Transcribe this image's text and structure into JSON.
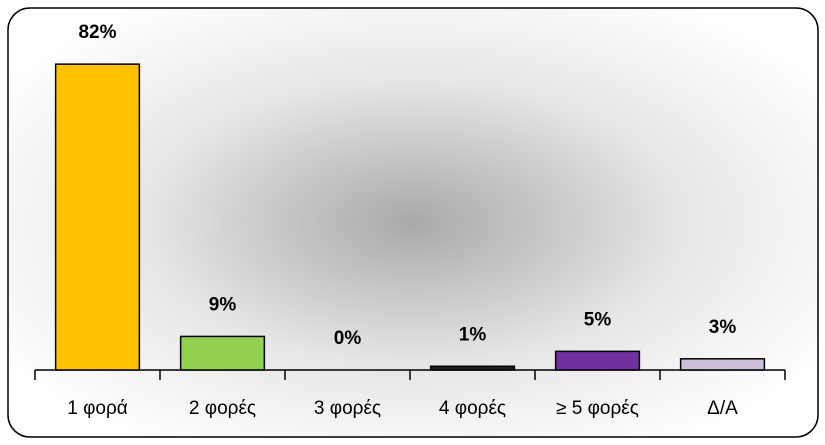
{
  "chart_data": {
    "type": "bar",
    "categories": [
      "1 φορά",
      "2 φορές",
      "3 φορές",
      "4 φορές",
      "≥ 5 φορές",
      "Δ/Α"
    ],
    "values": [
      82,
      9,
      0,
      1,
      5,
      3
    ],
    "value_labels": [
      "82%",
      "9%",
      "0%",
      "1%",
      "5%",
      "3%"
    ],
    "colors": [
      "#ffc000",
      "#92d050",
      "#a6a6a6",
      "#1f1f1f",
      "#7030a0",
      "#ccc0da"
    ]
  }
}
